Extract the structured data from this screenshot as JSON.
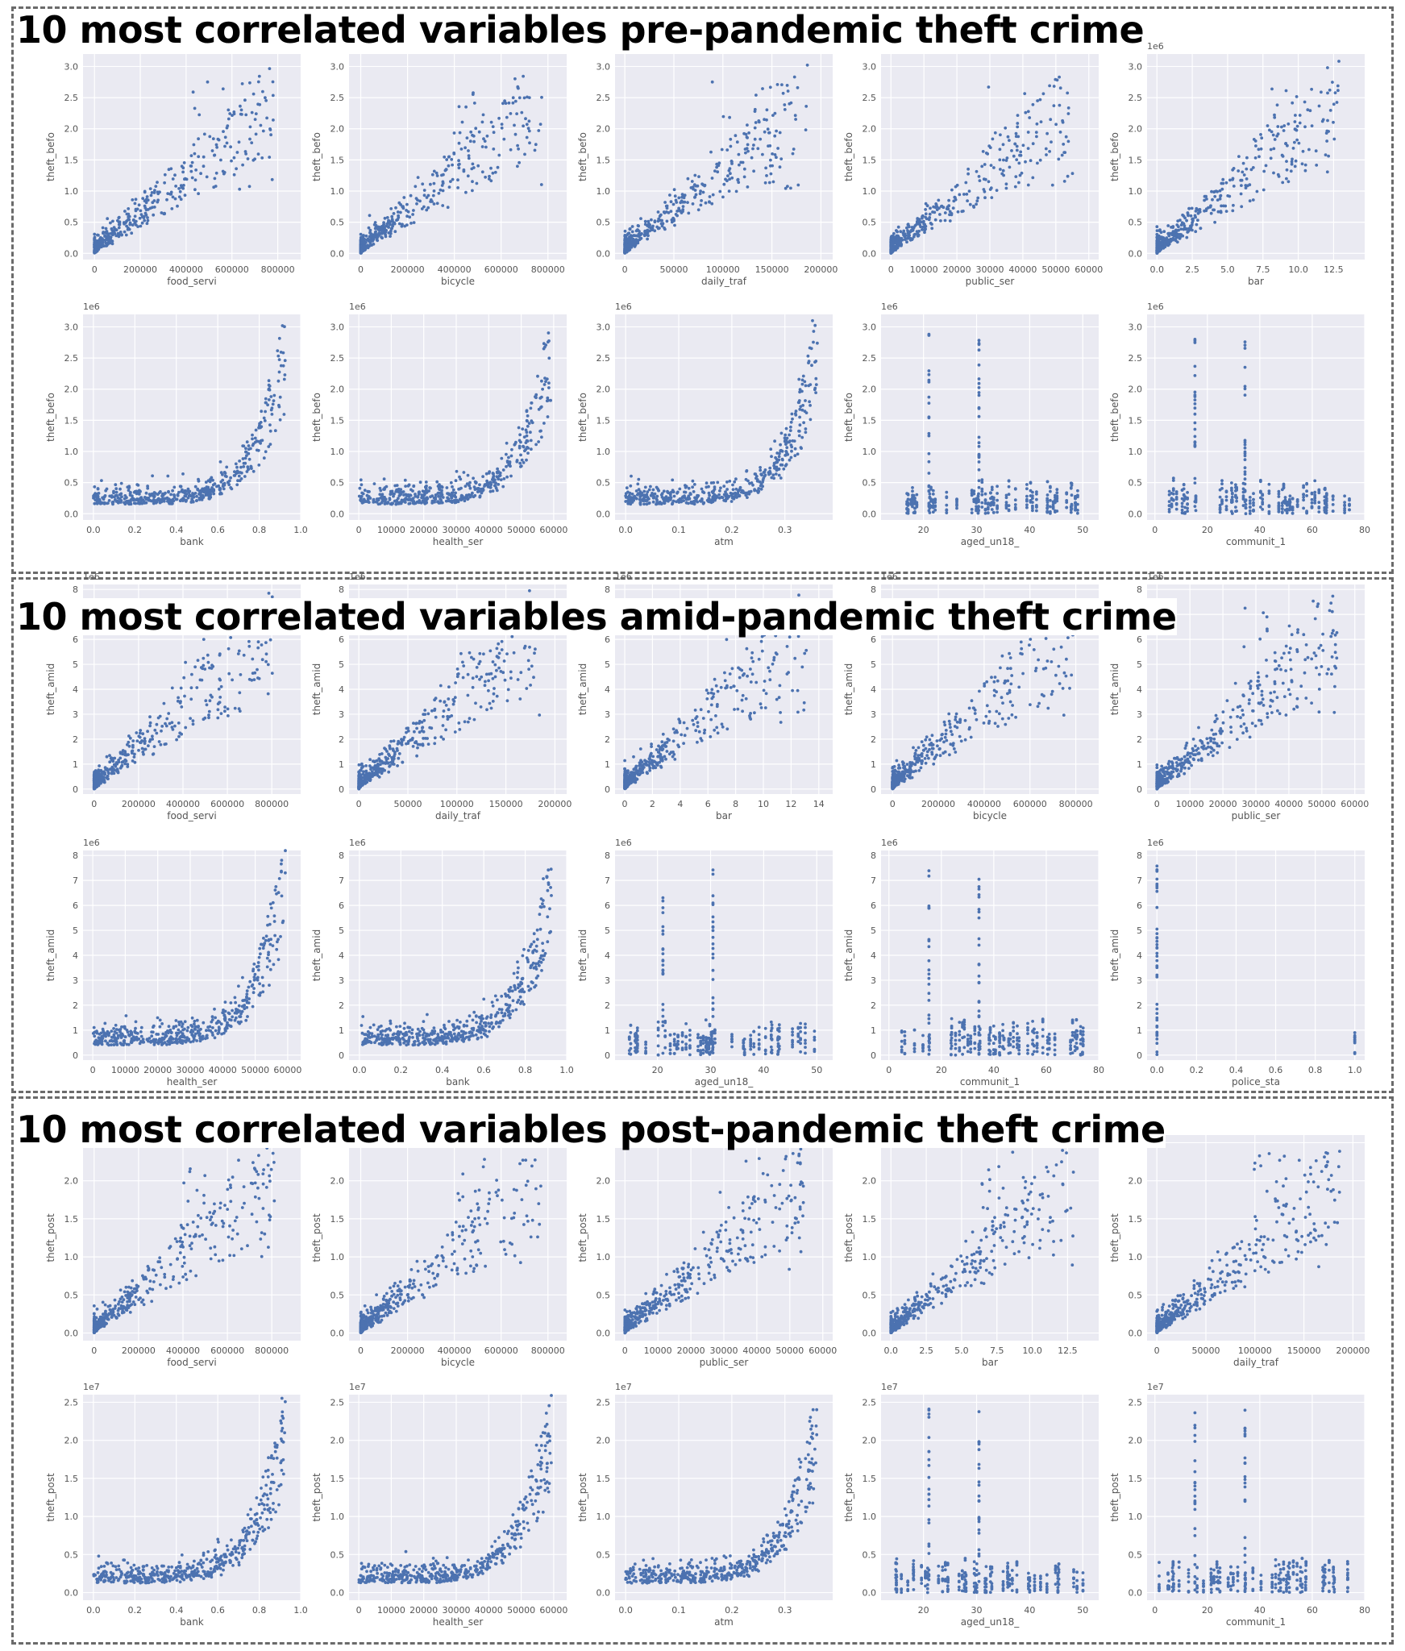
{
  "colors": {
    "plot_bg": "#eaeaf2",
    "grid": "#ffffff",
    "marker": "#4c72b0",
    "border": "#6b6b6b"
  },
  "sections": [
    {
      "title": "10 most correlated variables pre-pandemic theft crime",
      "ylabel": "theft_befo",
      "panels": [
        {
          "xlabel": "food_servi",
          "xticks": [
            "0",
            "200000",
            "400000",
            "600000",
            "800000"
          ],
          "xlim": [
            -50000,
            900000
          ],
          "yticks": [
            "0.0",
            "0.5",
            "1.0",
            "1.5",
            "2.0",
            "2.5",
            "3.0"
          ],
          "ylim": [
            -0.1,
            3.2
          ],
          "multiplier": "",
          "shape": "linear"
        },
        {
          "xlabel": "bicycle",
          "xticks": [
            "0",
            "200000",
            "400000",
            "600000",
            "800000"
          ],
          "xlim": [
            -50000,
            880000
          ],
          "yticks": [
            "0.0",
            "0.5",
            "1.0",
            "1.5",
            "2.0",
            "2.5",
            "3.0"
          ],
          "ylim": [
            -0.1,
            3.2
          ],
          "multiplier": "",
          "shape": "linear"
        },
        {
          "xlabel": "daily_traf",
          "xticks": [
            "0",
            "50000",
            "100000",
            "150000",
            "200000"
          ],
          "xlim": [
            -10000,
            212000
          ],
          "yticks": [
            "0.0",
            "0.5",
            "1.0",
            "1.5",
            "2.0",
            "2.5",
            "3.0"
          ],
          "ylim": [
            -0.1,
            3.2
          ],
          "multiplier": "",
          "shape": "linear"
        },
        {
          "xlabel": "public_ser",
          "xticks": [
            "0",
            "10000",
            "20000",
            "30000",
            "40000",
            "50000",
            "60000"
          ],
          "xlim": [
            -3000,
            63000
          ],
          "yticks": [
            "0.0",
            "0.5",
            "1.0",
            "1.5",
            "2.0",
            "2.5",
            "3.0"
          ],
          "ylim": [
            -0.1,
            3.2
          ],
          "multiplier": "",
          "shape": "linear"
        },
        {
          "xlabel": "bar",
          "xticks": [
            "0.0",
            "2.5",
            "5.0",
            "7.5",
            "10.0",
            "12.5"
          ],
          "xlim": [
            -0.7,
            14.7
          ],
          "yticks": [
            "0.0",
            "0.5",
            "1.0",
            "1.5",
            "2.0",
            "2.5",
            "3.0"
          ],
          "ylim": [
            -0.1,
            3.2
          ],
          "multiplier": "1e6",
          "shape": "linear"
        },
        {
          "xlabel": "bank",
          "xticks": [
            "0.0",
            "0.2",
            "0.4",
            "0.6",
            "0.8",
            "1.0"
          ],
          "xlim": [
            -0.05,
            1.0
          ],
          "yticks": [
            "0.0",
            "0.5",
            "1.0",
            "1.5",
            "2.0",
            "2.5",
            "3.0"
          ],
          "ylim": [
            -0.1,
            3.2
          ],
          "multiplier": "1e6",
          "shape": "exp"
        },
        {
          "xlabel": "health_ser",
          "xticks": [
            "0",
            "10000",
            "20000",
            "30000",
            "40000",
            "50000",
            "60000"
          ],
          "xlim": [
            -3000,
            64000
          ],
          "yticks": [
            "0.0",
            "0.5",
            "1.0",
            "1.5",
            "2.0",
            "2.5",
            "3.0"
          ],
          "ylim": [
            -0.1,
            3.2
          ],
          "multiplier": "1e6",
          "shape": "exp"
        },
        {
          "xlabel": "atm",
          "xticks": [
            "0.0",
            "0.1",
            "0.2",
            "0.3"
          ],
          "xlim": [
            -0.02,
            0.39
          ],
          "yticks": [
            "0.0",
            "0.5",
            "1.0",
            "1.5",
            "2.0",
            "2.5",
            "3.0"
          ],
          "ylim": [
            -0.1,
            3.2
          ],
          "multiplier": "1e6",
          "shape": "exp"
        },
        {
          "xlabel": "aged_un18_",
          "xticks": [
            "20",
            "30",
            "40",
            "50"
          ],
          "xlim": [
            12,
            53
          ],
          "yticks": [
            "0.0",
            "0.5",
            "1.0",
            "1.5",
            "2.0",
            "2.5",
            "3.0"
          ],
          "ylim": [
            -0.1,
            3.2
          ],
          "multiplier": "1e6",
          "shape": "spikes"
        },
        {
          "xlabel": "communit_1",
          "xticks": [
            "0",
            "20",
            "40",
            "60",
            "80"
          ],
          "xlim": [
            -3,
            80
          ],
          "yticks": [
            "0.0",
            "0.5",
            "1.0",
            "1.5",
            "2.0",
            "2.5",
            "3.0"
          ],
          "ylim": [
            -0.1,
            3.2
          ],
          "multiplier": "1e6",
          "shape": "spikes"
        }
      ]
    },
    {
      "title": "10 most correlated variables amid-pandemic theft crime",
      "ylabel": "theft_amid",
      "panels": [
        {
          "xlabel": "food_servi",
          "xticks": [
            "0",
            "200000",
            "400000",
            "600000",
            "800000"
          ],
          "xlim": [
            -50000,
            930000
          ],
          "yticks": [
            "0",
            "1",
            "2",
            "3",
            "4",
            "5",
            "6",
            "7",
            "8"
          ],
          "ylim": [
            -0.2,
            8.2
          ],
          "multiplier": "1e6",
          "shape": "linear"
        },
        {
          "xlabel": "daily_traf",
          "xticks": [
            "0",
            "50000",
            "100000",
            "150000",
            "200000"
          ],
          "xlim": [
            -10000,
            212000
          ],
          "yticks": [
            "0",
            "1",
            "2",
            "3",
            "4",
            "5",
            "6",
            "7",
            "8"
          ],
          "ylim": [
            -0.2,
            8.2
          ],
          "multiplier": "1e6",
          "shape": "linear"
        },
        {
          "xlabel": "bar",
          "xticks": [
            "0",
            "2",
            "4",
            "6",
            "8",
            "10",
            "12",
            "14"
          ],
          "xlim": [
            -0.7,
            15
          ],
          "yticks": [
            "0",
            "1",
            "2",
            "3",
            "4",
            "5",
            "6",
            "7",
            "8"
          ],
          "ylim": [
            -0.2,
            8.2
          ],
          "multiplier": "1e6",
          "shape": "linear"
        },
        {
          "xlabel": "bicycle",
          "xticks": [
            "0",
            "200000",
            "400000",
            "600000",
            "800000"
          ],
          "xlim": [
            -50000,
            900000
          ],
          "yticks": [
            "0",
            "1",
            "2",
            "3",
            "4",
            "5",
            "6",
            "7",
            "8"
          ],
          "ylim": [
            -0.2,
            8.2
          ],
          "multiplier": "1e6",
          "shape": "linear"
        },
        {
          "xlabel": "public_ser",
          "xticks": [
            "0",
            "10000",
            "20000",
            "30000",
            "40000",
            "50000",
            "60000"
          ],
          "xlim": [
            -3000,
            63000
          ],
          "yticks": [
            "0",
            "1",
            "2",
            "3",
            "4",
            "5",
            "6",
            "7",
            "8"
          ],
          "ylim": [
            -0.2,
            8.2
          ],
          "multiplier": "1e6",
          "shape": "linear"
        },
        {
          "xlabel": "health_ser",
          "xticks": [
            "0",
            "10000",
            "20000",
            "30000",
            "40000",
            "50000",
            "60000"
          ],
          "xlim": [
            -3000,
            64000
          ],
          "yticks": [
            "0",
            "1",
            "2",
            "3",
            "4",
            "5",
            "6",
            "7",
            "8"
          ],
          "ylim": [
            -0.2,
            8.2
          ],
          "multiplier": "1e6",
          "shape": "exp"
        },
        {
          "xlabel": "bank",
          "xticks": [
            "0.0",
            "0.2",
            "0.4",
            "0.6",
            "0.8",
            "1.0"
          ],
          "xlim": [
            -0.05,
            1.0
          ],
          "yticks": [
            "0",
            "1",
            "2",
            "3",
            "4",
            "5",
            "6",
            "7",
            "8"
          ],
          "ylim": [
            -0.2,
            8.2
          ],
          "multiplier": "1e6",
          "shape": "exp"
        },
        {
          "xlabel": "aged_un18_",
          "xticks": [
            "20",
            "30",
            "40",
            "50"
          ],
          "xlim": [
            12,
            53
          ],
          "yticks": [
            "0",
            "1",
            "2",
            "3",
            "4",
            "5",
            "6",
            "7",
            "8"
          ],
          "ylim": [
            -0.2,
            8.2
          ],
          "multiplier": "1e6",
          "shape": "spikes"
        },
        {
          "xlabel": "communit_1",
          "xticks": [
            "0",
            "20",
            "40",
            "60",
            "80"
          ],
          "xlim": [
            -3,
            80
          ],
          "yticks": [
            "0",
            "1",
            "2",
            "3",
            "4",
            "5",
            "6",
            "7",
            "8"
          ],
          "ylim": [
            -0.2,
            8.2
          ],
          "multiplier": "1e6",
          "shape": "spikes"
        },
        {
          "xlabel": "police_sta",
          "xticks": [
            "0.0",
            "0.2",
            "0.4",
            "0.6",
            "0.8",
            "1.0"
          ],
          "xlim": [
            -0.05,
            1.05
          ],
          "yticks": [
            "0",
            "1",
            "2",
            "3",
            "4",
            "5",
            "6",
            "7",
            "8"
          ],
          "ylim": [
            -0.2,
            8.2
          ],
          "multiplier": "1e6",
          "shape": "binary"
        }
      ]
    },
    {
      "title": "10 most correlated variables post-pandemic theft crime",
      "ylabel": "theft_post",
      "panels": [
        {
          "xlabel": "food_servi",
          "xticks": [
            "0",
            "200000",
            "400000",
            "600000",
            "800000"
          ],
          "xlim": [
            -50000,
            930000
          ],
          "yticks": [
            "0.0",
            "0.5",
            "1.0",
            "1.5",
            "2.0",
            "2.5"
          ],
          "ylim": [
            -0.1,
            2.6
          ],
          "multiplier": "",
          "shape": "linear"
        },
        {
          "xlabel": "bicycle",
          "xticks": [
            "0",
            "200000",
            "400000",
            "600000",
            "800000"
          ],
          "xlim": [
            -50000,
            880000
          ],
          "yticks": [
            "0.0",
            "0.5",
            "1.0",
            "1.5",
            "2.0",
            "2.5"
          ],
          "ylim": [
            -0.1,
            2.6
          ],
          "multiplier": "",
          "shape": "linear"
        },
        {
          "xlabel": "public_ser",
          "xticks": [
            "0",
            "10000",
            "20000",
            "30000",
            "40000",
            "50000",
            "60000"
          ],
          "xlim": [
            -3000,
            63000
          ],
          "yticks": [
            "0.0",
            "0.5",
            "1.0",
            "1.5",
            "2.0",
            "2.5"
          ],
          "ylim": [
            -0.1,
            2.6
          ],
          "multiplier": "",
          "shape": "linear"
        },
        {
          "xlabel": "bar",
          "xticks": [
            "0.0",
            "2.5",
            "5.0",
            "7.5",
            "10.0",
            "12.5"
          ],
          "xlim": [
            -0.7,
            14.7
          ],
          "yticks": [
            "0.0",
            "0.5",
            "1.0",
            "1.5",
            "2.0",
            "2.5"
          ],
          "ylim": [
            -0.1,
            2.6
          ],
          "multiplier": "",
          "shape": "linear"
        },
        {
          "xlabel": "daily_traf",
          "xticks": [
            "0",
            "50000",
            "100000",
            "150000",
            "200000"
          ],
          "xlim": [
            -10000,
            212000
          ],
          "yticks": [
            "0.0",
            "0.5",
            "1.0",
            "1.5",
            "2.0",
            "2.5"
          ],
          "ylim": [
            -0.1,
            2.6
          ],
          "multiplier": "1e7",
          "shape": "linear"
        },
        {
          "xlabel": "bank",
          "xticks": [
            "0.0",
            "0.2",
            "0.4",
            "0.6",
            "0.8",
            "1.0"
          ],
          "xlim": [
            -0.05,
            1.0
          ],
          "yticks": [
            "0.0",
            "0.5",
            "1.0",
            "1.5",
            "2.0",
            "2.5"
          ],
          "ylim": [
            -0.1,
            2.6
          ],
          "multiplier": "1e7",
          "shape": "exp"
        },
        {
          "xlabel": "health_ser",
          "xticks": [
            "0",
            "10000",
            "20000",
            "30000",
            "40000",
            "50000",
            "60000"
          ],
          "xlim": [
            -3000,
            64000
          ],
          "yticks": [
            "0.0",
            "0.5",
            "1.0",
            "1.5",
            "2.0",
            "2.5"
          ],
          "ylim": [
            -0.1,
            2.6
          ],
          "multiplier": "1e7",
          "shape": "exp"
        },
        {
          "xlabel": "atm",
          "xticks": [
            "0.0",
            "0.1",
            "0.2",
            "0.3"
          ],
          "xlim": [
            -0.02,
            0.39
          ],
          "yticks": [
            "0.0",
            "0.5",
            "1.0",
            "1.5",
            "2.0",
            "2.5"
          ],
          "ylim": [
            -0.1,
            2.6
          ],
          "multiplier": "1e7",
          "shape": "exp"
        },
        {
          "xlabel": "aged_un18_",
          "xticks": [
            "20",
            "30",
            "40",
            "50"
          ],
          "xlim": [
            12,
            53
          ],
          "yticks": [
            "0.0",
            "0.5",
            "1.0",
            "1.5",
            "2.0",
            "2.5"
          ],
          "ylim": [
            -0.1,
            2.6
          ],
          "multiplier": "1e7",
          "shape": "spikes"
        },
        {
          "xlabel": "communit_1",
          "xticks": [
            "0",
            "20",
            "40",
            "60",
            "80"
          ],
          "xlim": [
            -3,
            80
          ],
          "yticks": [
            "0.0",
            "0.5",
            "1.0",
            "1.5",
            "2.0",
            "2.5"
          ],
          "ylim": [
            -0.1,
            2.6
          ],
          "multiplier": "1e7",
          "shape": "spikes"
        }
      ]
    }
  ],
  "chart_data": {
    "type": "scatter",
    "grid": true,
    "layout": "3 sections x 2 rows x 5 columns",
    "groups": [
      {
        "title": "10 most correlated variables pre-pandemic theft crime",
        "y": "theft_befo",
        "x": [
          "food_servi",
          "bicycle",
          "daily_traf",
          "public_ser",
          "bar",
          "bank",
          "health_ser",
          "atm",
          "aged_un18_",
          "communit_1"
        ],
        "y_max_approx": 3.1,
        "y_units": "1e6"
      },
      {
        "title": "10 most correlated variables amid-pandemic theft crime",
        "y": "theft_amid",
        "x": [
          "food_servi",
          "daily_traf",
          "bar",
          "bicycle",
          "public_ser",
          "health_ser",
          "bank",
          "aged_un18_",
          "communit_1",
          "police_sta"
        ],
        "y_max_approx": 7.6,
        "y_units": "1e6"
      },
      {
        "title": "10 most correlated variables post-pandemic theft crime",
        "y": "theft_post",
        "x": [
          "food_servi",
          "bicycle",
          "public_ser",
          "bar",
          "daily_traf",
          "bank",
          "health_ser",
          "atm",
          "aged_un18_",
          "communit_1"
        ],
        "y_max_approx": 2.45,
        "y_units": "1e7"
      }
    ]
  }
}
